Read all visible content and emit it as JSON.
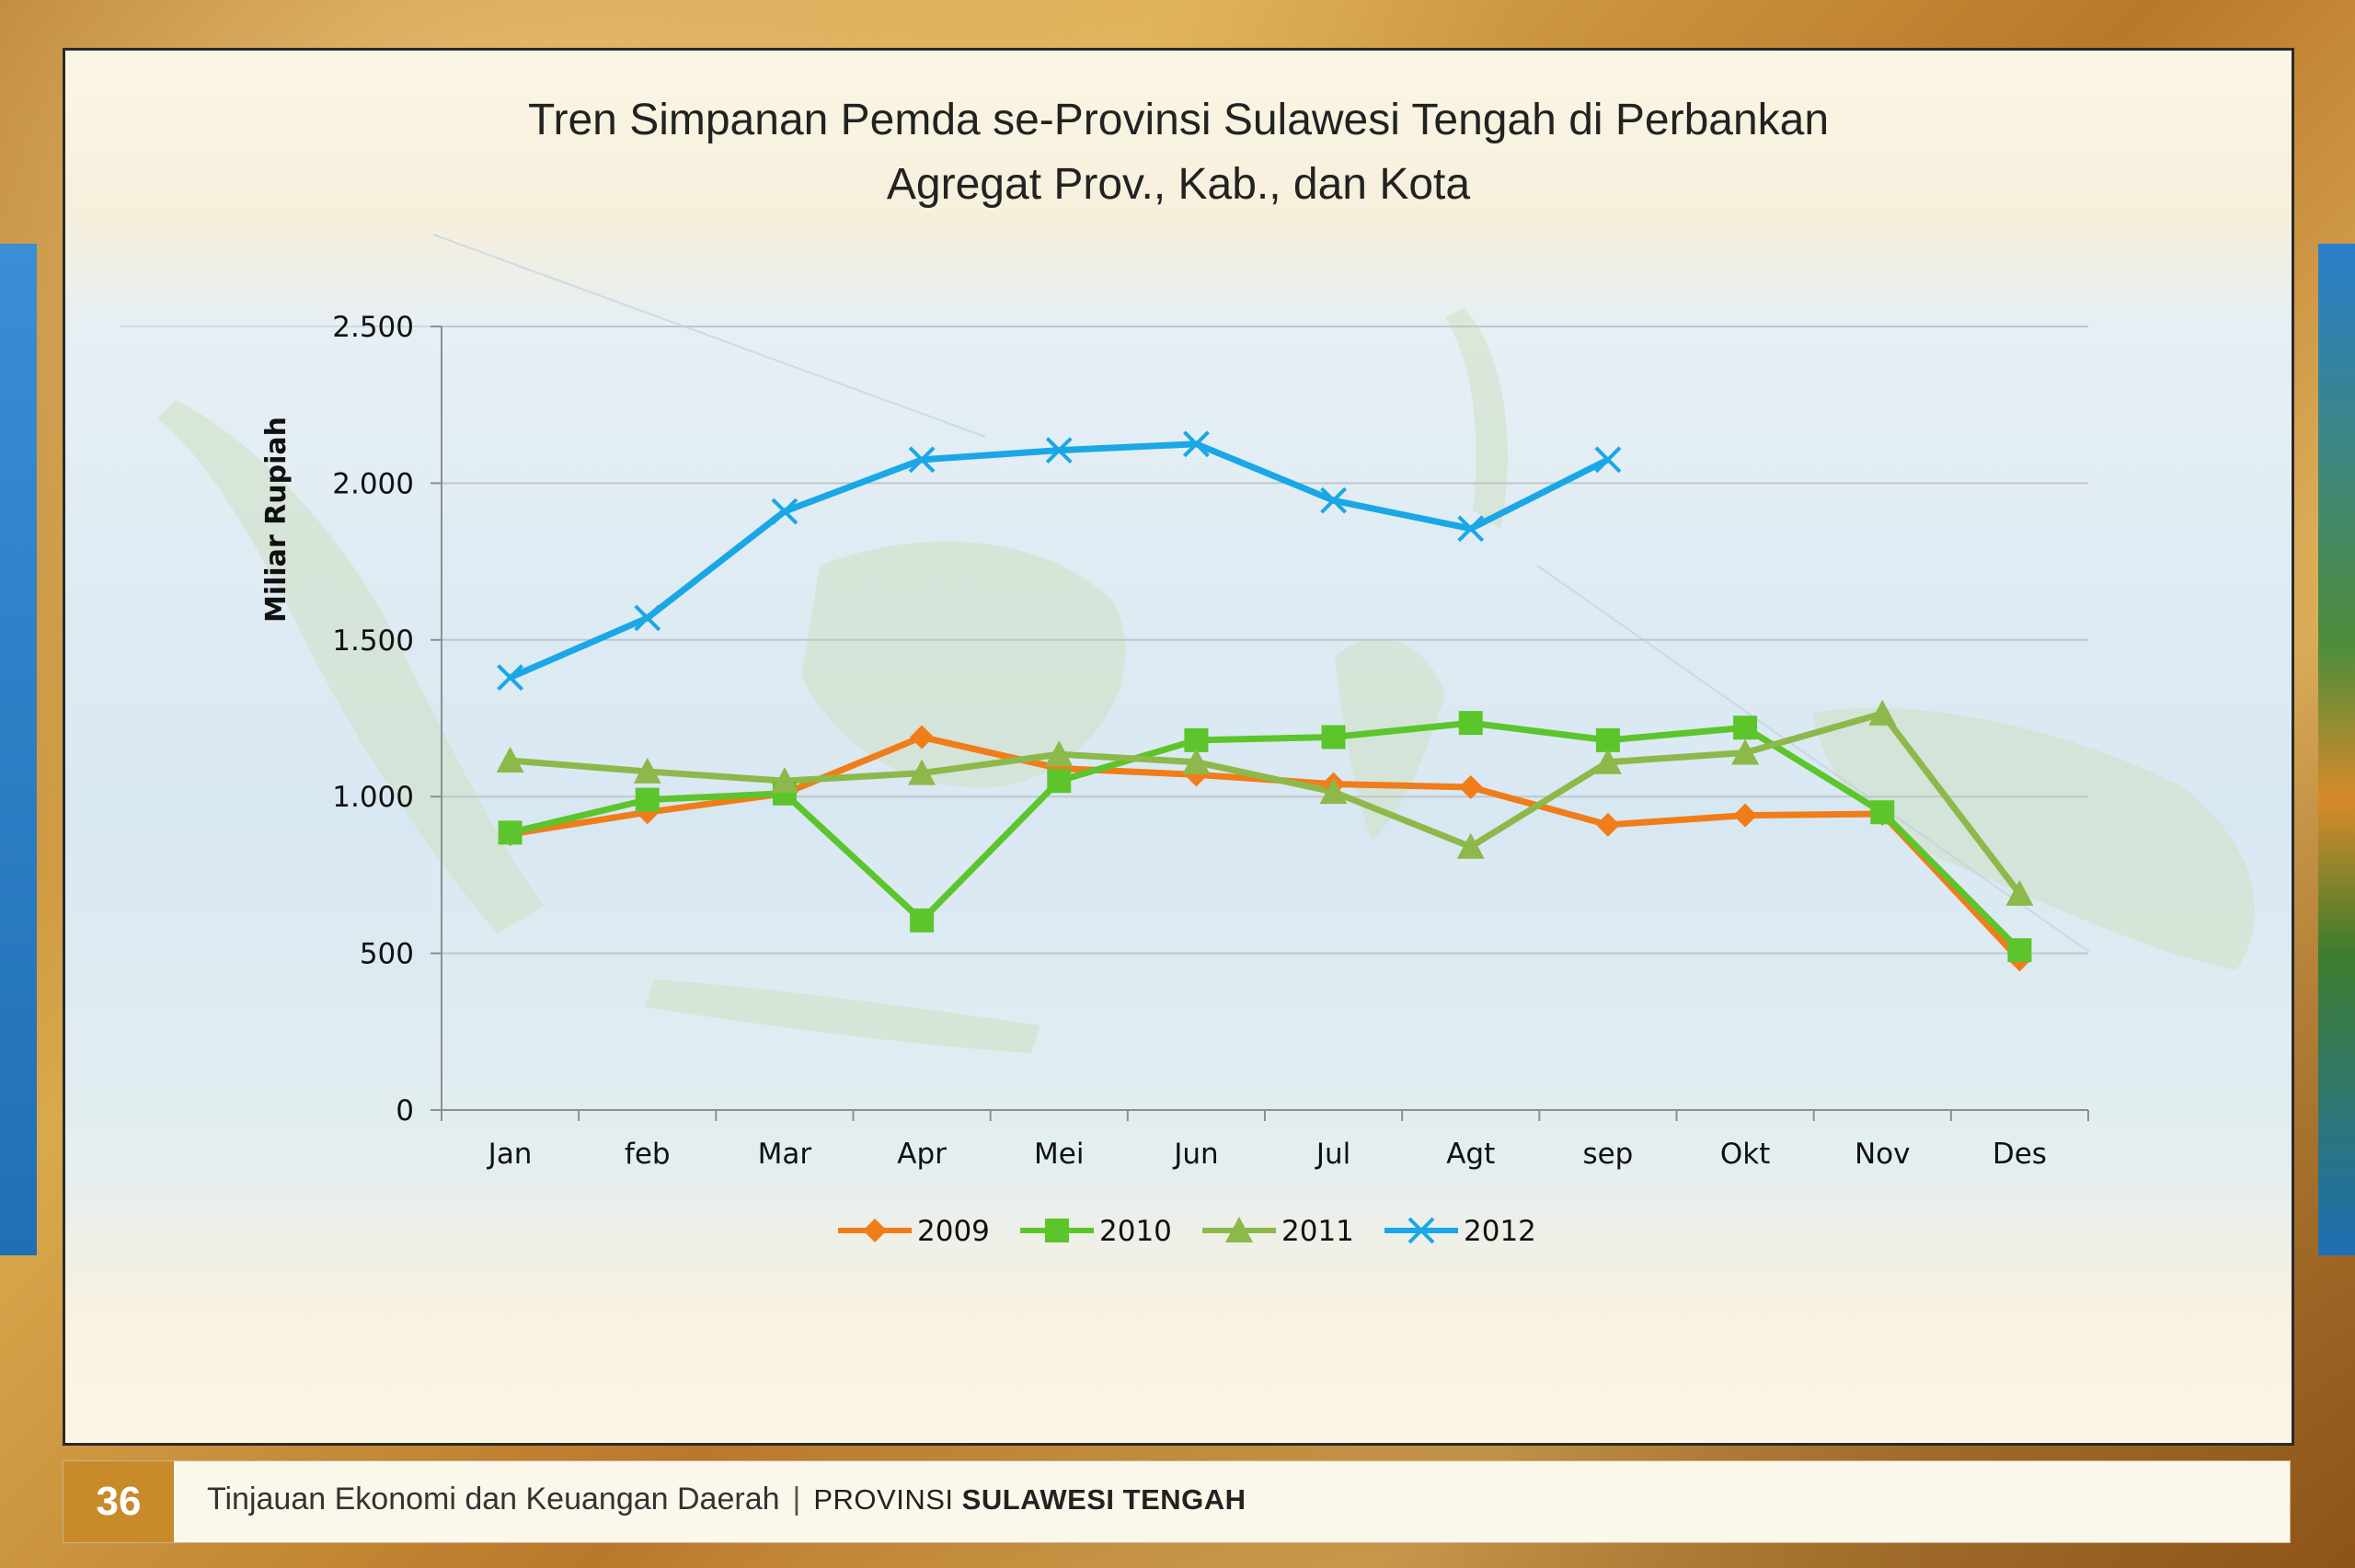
{
  "chart_data": {
    "type": "line",
    "title_line1": "Tren Simpanan Pemda se-Provinsi Sulawesi Tengah di Perbankan",
    "title_line2": "Agregat Prov., Kab., dan Kota",
    "xlabel": "",
    "ylabel": "Miliar Rupiah",
    "categories": [
      "Jan",
      "feb",
      "Mar",
      "Apr",
      "Mei",
      "Jun",
      "Jul",
      "Agt",
      "sep",
      "Okt",
      "Nov",
      "Des"
    ],
    "ylim": [
      0,
      2500
    ],
    "yticks": [
      0,
      500,
      1000,
      1500,
      2000,
      2500
    ],
    "ytick_labels": [
      "0",
      "500",
      "1.000",
      "1.500",
      "2.000",
      "2.500"
    ],
    "grid": "horizontal",
    "legend_position": "bottom",
    "series": [
      {
        "name": "2009",
        "color": "#f07d1a",
        "marker": "diamond",
        "values": [
          880,
          950,
          1010,
          1190,
          1090,
          1070,
          1040,
          1030,
          910,
          940,
          945,
          480
        ]
      },
      {
        "name": "2010",
        "color": "#5cc52b",
        "marker": "square",
        "values": [
          885,
          990,
          1010,
          605,
          1050,
          1180,
          1190,
          1235,
          1180,
          1220,
          950,
          510
        ]
      },
      {
        "name": "2011",
        "color": "#8db84a",
        "marker": "triangle",
        "values": [
          1115,
          1080,
          1050,
          1075,
          1135,
          1110,
          1015,
          840,
          1110,
          1140,
          1265,
          690
        ]
      },
      {
        "name": "2012",
        "color": "#1aa7e6",
        "marker": "x",
        "values": [
          1380,
          1570,
          1910,
          2075,
          2105,
          2125,
          1945,
          1855,
          2075,
          null,
          null,
          null
        ]
      }
    ]
  },
  "footer": {
    "page_number": "36",
    "left_text": "Tinjauan Ekonomi dan Keuangan Daerah",
    "separator": "|",
    "prov_prefix": "PROVINSI",
    "prov_name": "SULAWESI TENGAH"
  }
}
